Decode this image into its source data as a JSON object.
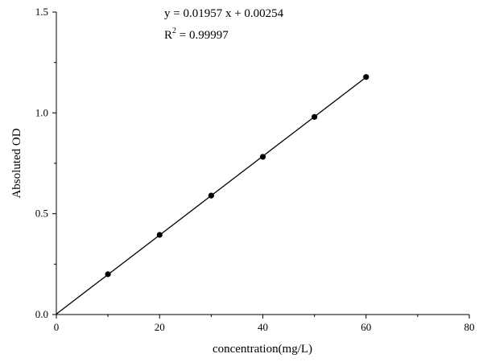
{
  "chart_data": {
    "type": "scatter",
    "title": "",
    "xlabel": "concentration(mg/L)",
    "ylabel": "Absoluted OD",
    "xlim": [
      0,
      80
    ],
    "ylim": [
      0,
      1.5
    ],
    "x_ticks": [
      "0",
      "20",
      "40",
      "60",
      "80"
    ],
    "y_ticks": [
      "0.0",
      "0.5",
      "1.0",
      "1.5"
    ],
    "x_tick_values": [
      0,
      20,
      40,
      60,
      80
    ],
    "y_tick_values": [
      0,
      0.5,
      1.0,
      1.5
    ],
    "grid": false,
    "series": [
      {
        "x": [
          10,
          20,
          30,
          40,
          50,
          60
        ],
        "y": [
          0.2,
          0.395,
          0.59,
          0.782,
          0.98,
          1.178
        ]
      }
    ],
    "fit": {
      "slope": 0.01957,
      "intercept": 0.00254,
      "x_range": [
        0,
        60
      ]
    },
    "annotations": {
      "equation": "y = 0.01957 x + 0.00254",
      "r2_label": "R",
      "r2_exponent": "2",
      "r2_value": " = 0.99997"
    }
  }
}
